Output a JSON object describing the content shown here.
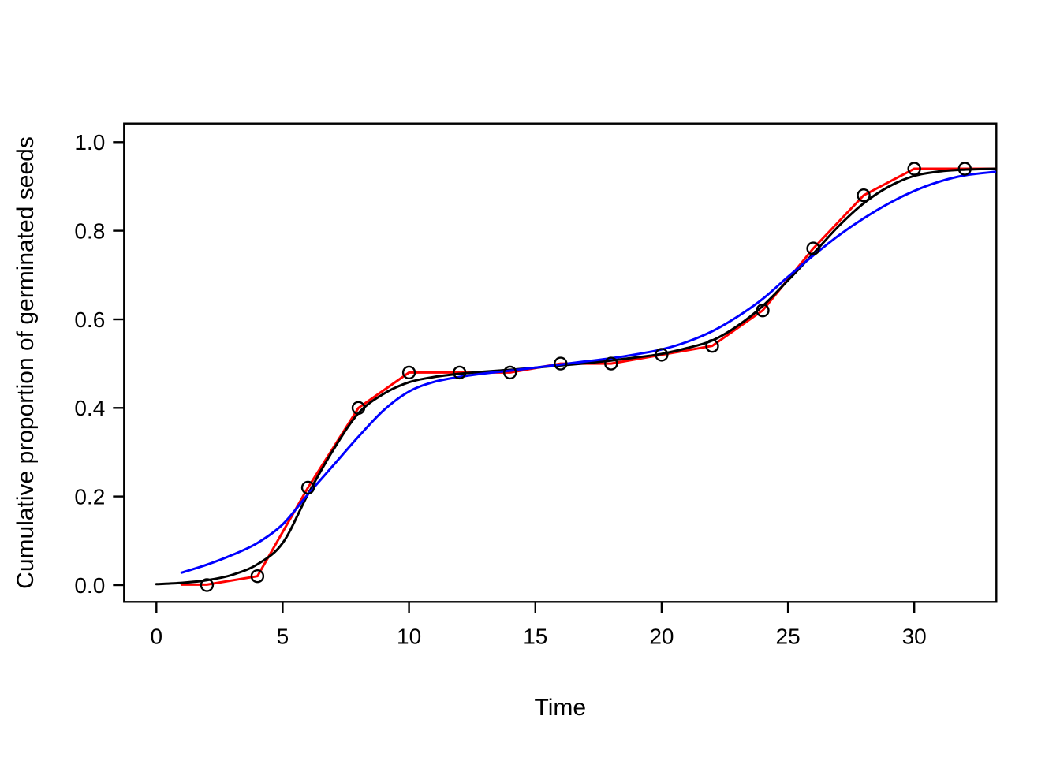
{
  "figure": {
    "background": "#ffffff"
  },
  "chart_data": {
    "type": "line",
    "title": "",
    "xlabel": "Time",
    "ylabel": "Cumulative proportion of germinated seeds",
    "xlim": [
      -1.28,
      33.25
    ],
    "ylim": [
      -0.038,
      1.042
    ],
    "grid": false,
    "legend": "none",
    "frame": true,
    "axis_color": "#000000",
    "x_ticks": {
      "values": [
        0,
        5,
        10,
        15,
        20,
        25,
        30
      ],
      "labels": [
        "0",
        "5",
        "10",
        "15",
        "20",
        "25",
        "30"
      ]
    },
    "y_ticks": {
      "values": [
        0.0,
        0.2,
        0.4,
        0.6,
        0.8,
        1.0
      ],
      "labels": [
        "0.0",
        "0.2",
        "0.4",
        "0.6",
        "0.8",
        "1.0"
      ]
    },
    "series": [
      {
        "name": "observed-connecting-line",
        "type": "line",
        "interpolation": "linear",
        "color": "#ff0000",
        "x": [
          1,
          2,
          4,
          6,
          8,
          10,
          12,
          14,
          16,
          18,
          20,
          22,
          24,
          26,
          28,
          30,
          32,
          33.2
        ],
        "y": [
          0.001,
          0.001,
          0.02,
          0.22,
          0.4,
          0.48,
          0.48,
          0.48,
          0.5,
          0.5,
          0.52,
          0.54,
          0.62,
          0.76,
          0.88,
          0.94,
          0.94,
          0.94
        ]
      },
      {
        "name": "fitted-curve-black",
        "type": "line",
        "interpolation": "smooth",
        "color": "#000000",
        "x": [
          0,
          1,
          2,
          3,
          4,
          5,
          6,
          7,
          8,
          9,
          10,
          11,
          12,
          13,
          14,
          15,
          16,
          17,
          18,
          19,
          20,
          21,
          22,
          23,
          24,
          25,
          26,
          27,
          28,
          29,
          30,
          31,
          32,
          33.2
        ],
        "y": [
          0.002,
          0.005,
          0.011,
          0.023,
          0.047,
          0.095,
          0.205,
          0.305,
          0.388,
          0.432,
          0.458,
          0.47,
          0.477,
          0.482,
          0.486,
          0.491,
          0.496,
          0.501,
          0.507,
          0.514,
          0.522,
          0.535,
          0.552,
          0.585,
          0.63,
          0.688,
          0.748,
          0.81,
          0.862,
          0.9,
          0.924,
          0.934,
          0.938,
          0.94
        ]
      },
      {
        "name": "fitted-curve-blue",
        "type": "line",
        "interpolation": "smooth",
        "color": "#0000ff",
        "x": [
          1,
          2,
          3,
          4,
          5,
          6,
          7,
          8,
          9,
          10,
          11,
          12,
          13,
          14,
          15,
          16,
          17,
          18,
          19,
          20,
          21,
          22,
          23,
          24,
          25,
          26,
          27,
          28,
          29,
          30,
          31,
          32,
          33.2
        ],
        "y": [
          0.028,
          0.046,
          0.068,
          0.095,
          0.137,
          0.205,
          0.27,
          0.335,
          0.395,
          0.437,
          0.459,
          0.47,
          0.478,
          0.484,
          0.491,
          0.498,
          0.505,
          0.512,
          0.521,
          0.532,
          0.549,
          0.573,
          0.606,
          0.646,
          0.696,
          0.744,
          0.789,
          0.828,
          0.862,
          0.89,
          0.911,
          0.925,
          0.933
        ]
      },
      {
        "name": "observed-points",
        "type": "scatter",
        "marker": "open-circle",
        "color": "#000000",
        "x": [
          2,
          4,
          6,
          8,
          10,
          12,
          14,
          16,
          18,
          20,
          22,
          24,
          26,
          28,
          30,
          32
        ],
        "y": [
          0.0,
          0.02,
          0.22,
          0.4,
          0.48,
          0.48,
          0.48,
          0.5,
          0.5,
          0.52,
          0.54,
          0.62,
          0.76,
          0.88,
          0.94,
          0.94
        ]
      }
    ]
  }
}
